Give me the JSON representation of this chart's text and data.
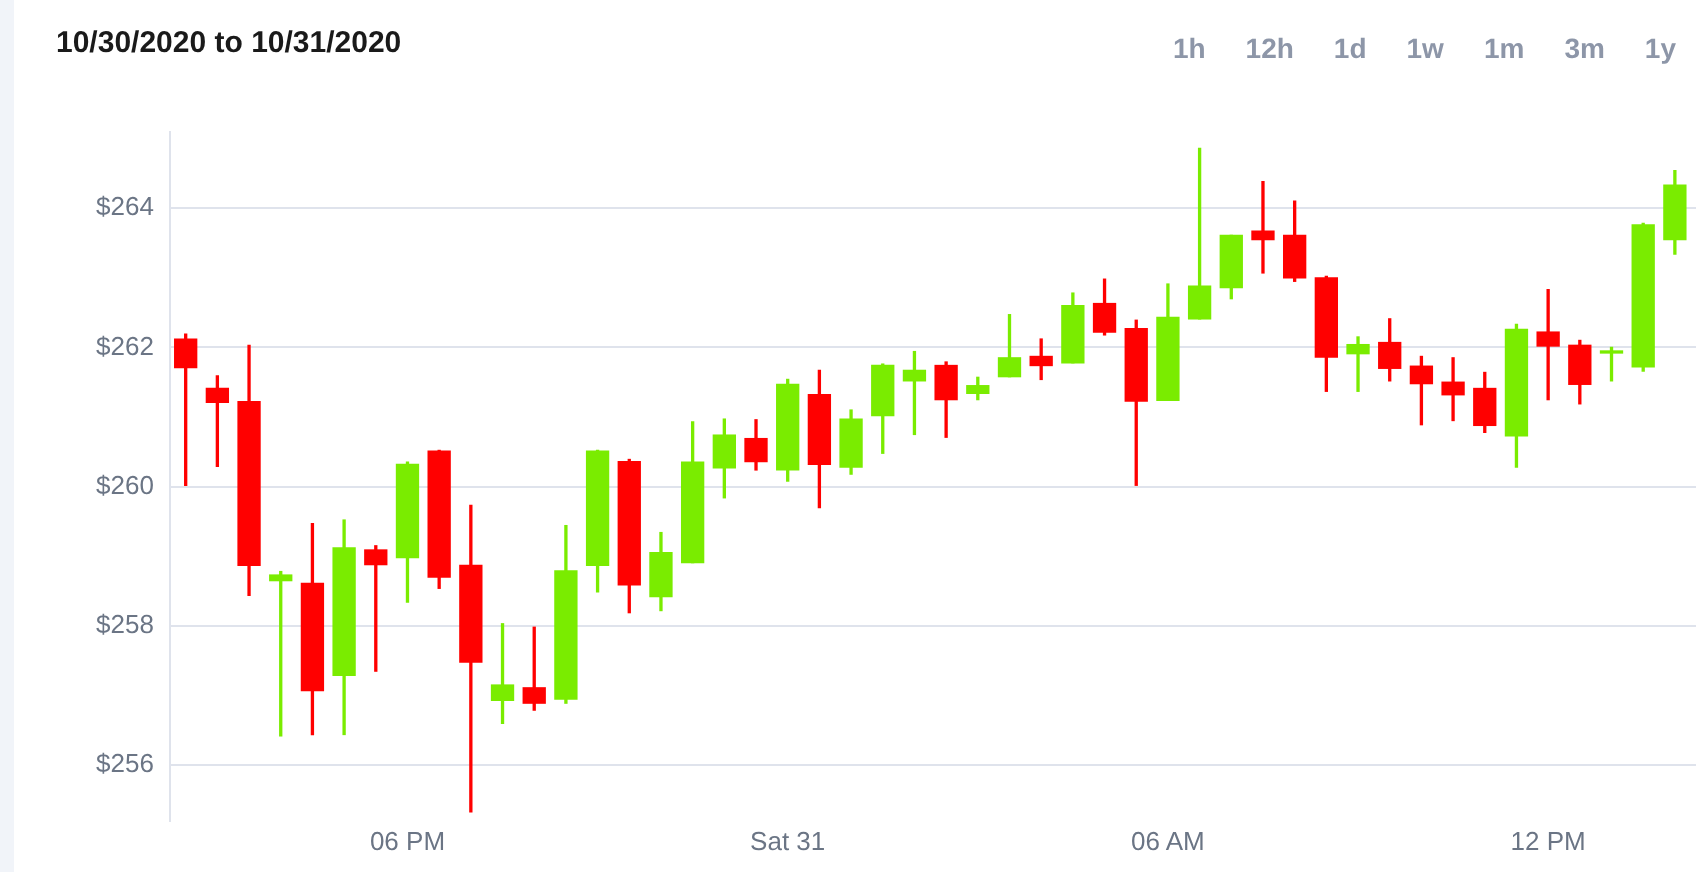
{
  "chart_data": {
    "type": "candlestick",
    "title": "10/30/2020 to 10/31/2020",
    "annotations": [
      "1h",
      "12h",
      "1d",
      "1w",
      "1m",
      "3m",
      "1y"
    ],
    "x": [
      "2020-10-30T14:30",
      "2020-10-30T15:00",
      "2020-10-30T15:30",
      "2020-10-30T16:00",
      "2020-10-30T16:30",
      "2020-10-30T17:00",
      "2020-10-30T17:30",
      "2020-10-30T18:00",
      "2020-10-30T18:30",
      "2020-10-30T19:00",
      "2020-10-30T19:30",
      "2020-10-30T20:00",
      "2020-10-30T20:30",
      "2020-10-30T21:00",
      "2020-10-30T21:30",
      "2020-10-30T22:00",
      "2020-10-30T22:30",
      "2020-10-30T23:00",
      "2020-10-30T23:30",
      "2020-10-31T00:00",
      "2020-10-31T00:30",
      "2020-10-31T01:00",
      "2020-10-31T01:30",
      "2020-10-31T02:00",
      "2020-10-31T02:30",
      "2020-10-31T03:00",
      "2020-10-31T03:30",
      "2020-10-31T04:00",
      "2020-10-31T04:30",
      "2020-10-31T05:00",
      "2020-10-31T05:30",
      "2020-10-31T06:00",
      "2020-10-31T06:30",
      "2020-10-31T07:00",
      "2020-10-31T07:30",
      "2020-10-31T08:00",
      "2020-10-31T08:30",
      "2020-10-31T09:00",
      "2020-10-31T09:30",
      "2020-10-31T10:00",
      "2020-10-31T10:30",
      "2020-10-31T11:00",
      "2020-10-31T11:30",
      "2020-10-31T12:00",
      "2020-10-31T12:30",
      "2020-10-31T13:00",
      "2020-10-31T13:30",
      "2020-10-31T14:00"
    ],
    "ohlc": [
      [
        262.12,
        262.19,
        260.02,
        261.71
      ],
      [
        261.41,
        261.59,
        260.29,
        261.21
      ],
      [
        261.22,
        262.03,
        258.44,
        258.87
      ],
      [
        258.65,
        258.78,
        256.42,
        258.73
      ],
      [
        258.61,
        259.47,
        256.44,
        257.07
      ],
      [
        257.29,
        259.52,
        256.44,
        259.12
      ],
      [
        259.09,
        259.15,
        257.35,
        258.88
      ],
      [
        258.98,
        260.35,
        258.34,
        260.32
      ],
      [
        260.51,
        260.52,
        258.54,
        258.7
      ],
      [
        258.87,
        259.73,
        255.33,
        257.48
      ],
      [
        256.93,
        258.03,
        256.6,
        257.15
      ],
      [
        257.11,
        257.98,
        256.79,
        256.89
      ],
      [
        256.95,
        259.44,
        256.89,
        258.79
      ],
      [
        258.87,
        260.52,
        258.49,
        260.51
      ],
      [
        260.36,
        260.39,
        258.19,
        258.59
      ],
      [
        258.42,
        259.34,
        258.22,
        259.05
      ],
      [
        258.91,
        260.93,
        258.91,
        260.35
      ],
      [
        260.27,
        260.97,
        259.84,
        260.74
      ],
      [
        260.69,
        260.96,
        260.24,
        260.36
      ],
      [
        260.24,
        261.54,
        260.08,
        261.47
      ],
      [
        261.32,
        261.67,
        259.7,
        260.32
      ],
      [
        260.28,
        261.1,
        260.18,
        260.97
      ],
      [
        261.02,
        261.76,
        260.48,
        261.74
      ],
      [
        261.52,
        261.94,
        260.75,
        261.67
      ],
      [
        261.74,
        261.79,
        260.71,
        261.25
      ],
      [
        261.34,
        261.57,
        261.25,
        261.45
      ],
      [
        261.58,
        262.47,
        261.58,
        261.85
      ],
      [
        261.87,
        262.12,
        261.54,
        261.74
      ],
      [
        261.78,
        262.78,
        261.78,
        262.6
      ],
      [
        262.63,
        262.98,
        262.18,
        262.22
      ],
      [
        262.27,
        262.39,
        260.02,
        261.23
      ],
      [
        261.24,
        262.91,
        261.24,
        262.43
      ],
      [
        262.41,
        264.86,
        262.41,
        262.88
      ],
      [
        262.86,
        263.61,
        262.7,
        263.61
      ],
      [
        263.67,
        264.38,
        263.07,
        263.55
      ],
      [
        263.61,
        264.1,
        262.95,
        263.0
      ],
      [
        263.0,
        263.02,
        261.37,
        261.86
      ],
      [
        261.91,
        262.15,
        261.37,
        262.04
      ],
      [
        262.07,
        262.41,
        261.52,
        261.7
      ],
      [
        261.73,
        261.87,
        260.89,
        261.48
      ],
      [
        261.5,
        261.85,
        260.95,
        261.32
      ],
      [
        261.41,
        261.64,
        260.78,
        260.88
      ],
      [
        260.73,
        262.33,
        260.28,
        262.26
      ],
      [
        262.22,
        262.83,
        261.25,
        262.02
      ],
      [
        262.03,
        262.1,
        261.19,
        261.47
      ],
      [
        261.92,
        262.0,
        261.52,
        261.94
      ],
      [
        261.72,
        263.78,
        261.66,
        263.76
      ],
      [
        263.55,
        264.54,
        263.34,
        264.33
      ]
    ],
    "colors": [
      "#ff0000",
      "#ff0000",
      "#ff0000",
      "#7aec00",
      "#ff0000",
      "#7aec00",
      "#ff0000",
      "#7aec00",
      "#ff0000",
      "#ff0000",
      "#7aec00",
      "#ff0000",
      "#7aec00",
      "#7aec00",
      "#ff0000",
      "#7aec00",
      "#7aec00",
      "#7aec00",
      "#ff0000",
      "#7aec00",
      "#ff0000",
      "#7aec00",
      "#7aec00",
      "#7aec00",
      "#ff0000",
      "#7aec00",
      "#7aec00",
      "#ff0000",
      "#7aec00",
      "#ff0000",
      "#ff0000",
      "#7aec00",
      "#7aec00",
      "#7aec00",
      "#ff0000",
      "#ff0000",
      "#ff0000",
      "#7aec00",
      "#ff0000",
      "#ff0000",
      "#ff0000",
      "#ff0000",
      "#7aec00",
      "#ff0000",
      "#ff0000",
      "#7aec00",
      "#7aec00",
      "#7aec00"
    ],
    "xlim": [
      "2020-10-30T14:15",
      "2020-10-31T14:20"
    ],
    "xticks": [
      {
        "value": "2020-10-30T18:00",
        "label": "06 PM"
      },
      {
        "value": "2020-10-31T00:00",
        "label": "Sat 31"
      },
      {
        "value": "2020-10-31T06:00",
        "label": "06 AM"
      },
      {
        "value": "2020-10-31T12:00",
        "label": "12 PM"
      }
    ],
    "ylim": [
      255.2,
      265.1
    ],
    "yticks": [
      {
        "value": 256,
        "label": "$256"
      },
      {
        "value": 258,
        "label": "$258"
      },
      {
        "value": 260,
        "label": "$260"
      },
      {
        "value": 262,
        "label": "$262"
      },
      {
        "value": 264,
        "label": "$264"
      }
    ],
    "grid": "y",
    "legend": false
  }
}
